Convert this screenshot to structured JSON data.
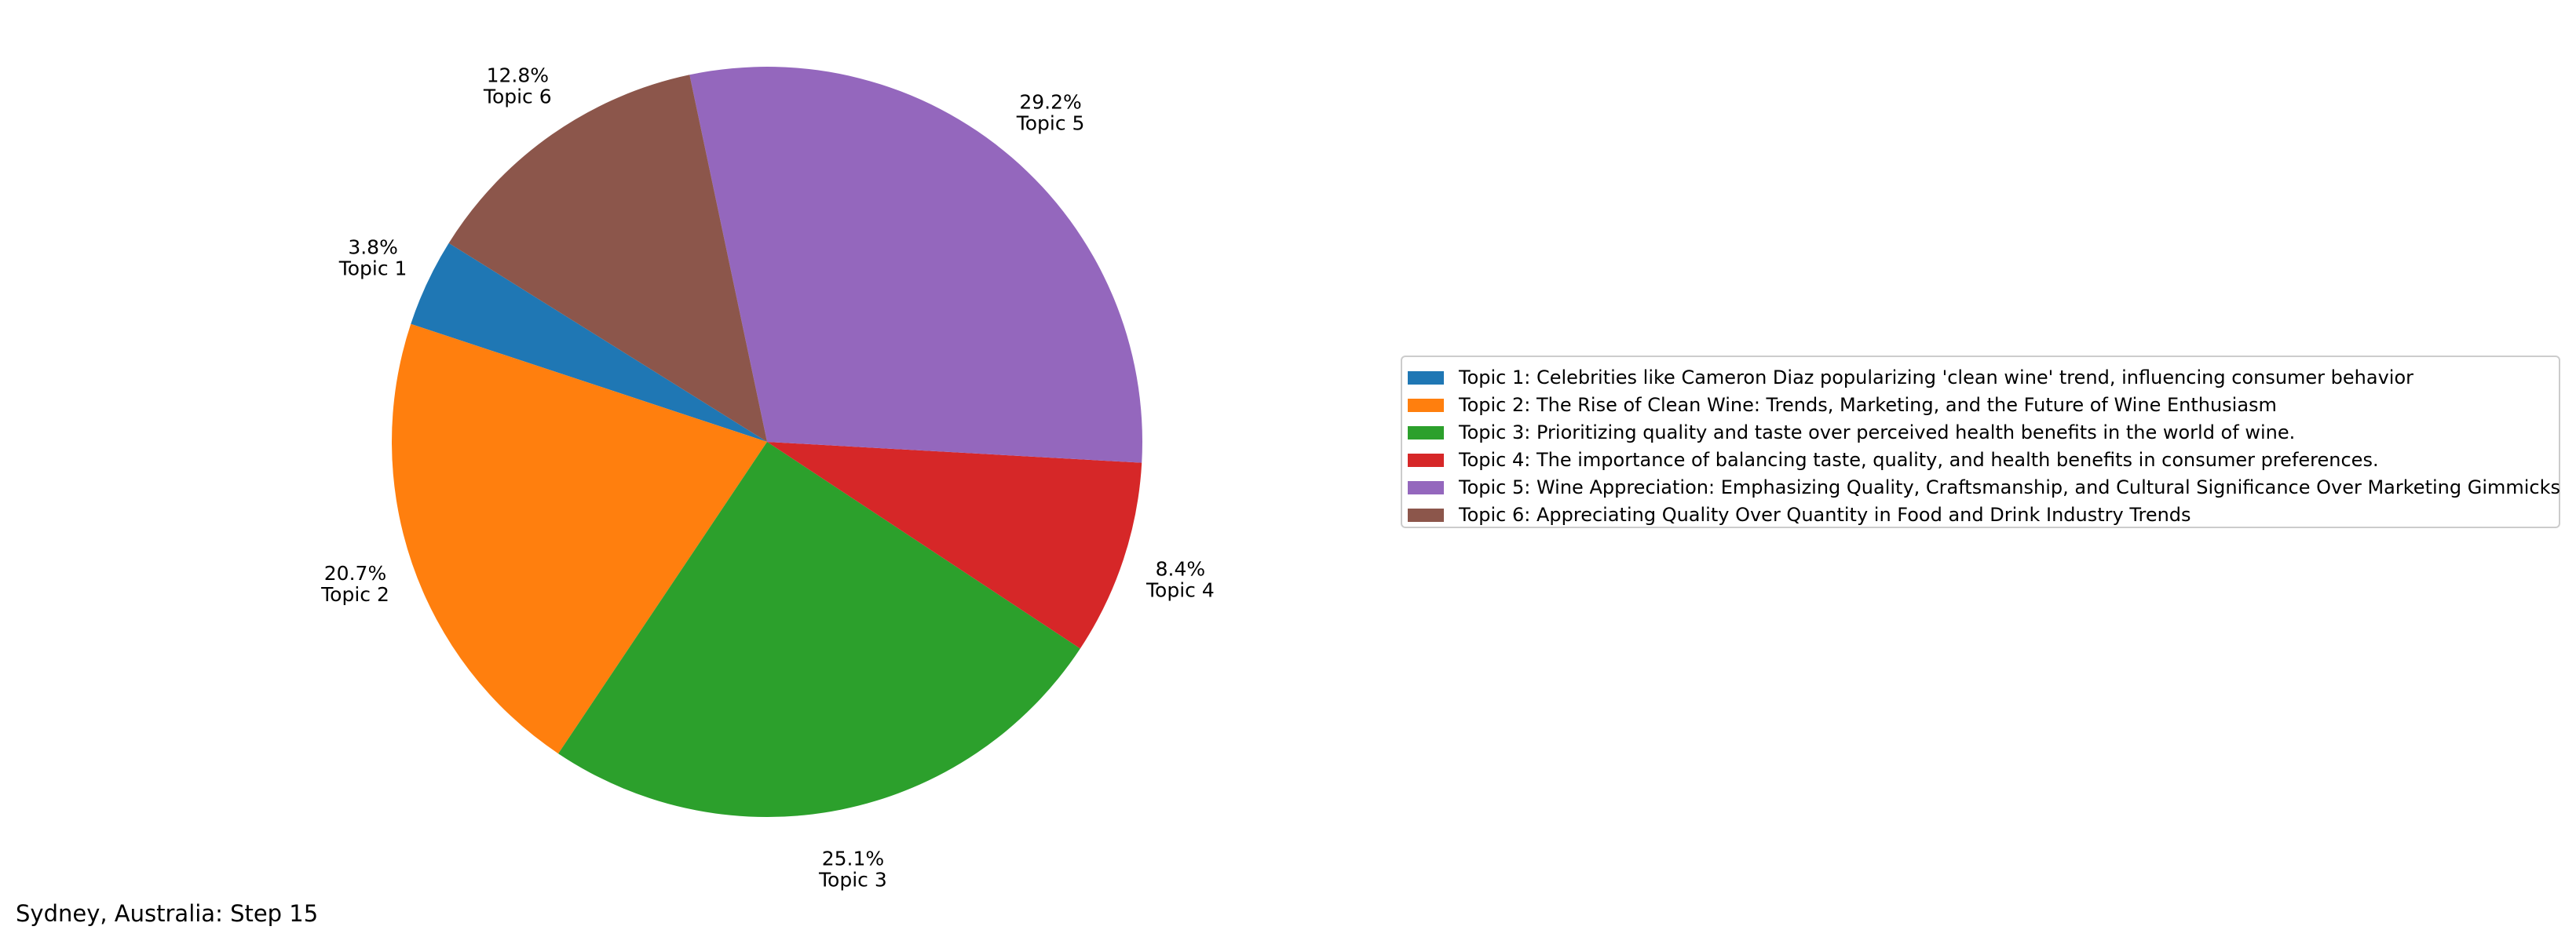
{
  "chart_data": {
    "type": "pie",
    "start_angle_deg": 148,
    "direction": "counterclockwise",
    "slices": [
      {
        "label": "Topic 1",
        "value": 3.8,
        "value_label": "3.8%",
        "color": "#1f77b4"
      },
      {
        "label": "Topic 2",
        "value": 20.7,
        "value_label": "20.7%",
        "color": "#ff7f0e"
      },
      {
        "label": "Topic 3",
        "value": 25.1,
        "value_label": "25.1%",
        "color": "#2ca02c"
      },
      {
        "label": "Topic 4",
        "value": 8.4,
        "value_label": "8.4%",
        "color": "#d62728"
      },
      {
        "label": "Topic 5",
        "value": 29.2,
        "value_label": "29.2%",
        "color": "#9467bd"
      },
      {
        "label": "Topic 6",
        "value": 12.8,
        "value_label": "12.8%",
        "color": "#8c564b"
      }
    ],
    "legend": {
      "placement": "right",
      "entries": [
        "Topic 1: Celebrities like Cameron Diaz popularizing 'clean wine' trend, influencing consumer behavior",
        "Topic 2: The Rise of Clean Wine: Trends, Marketing, and the Future of Wine Enthusiasm",
        "Topic 3: Prioritizing quality and taste over perceived health benefits in the world of wine.",
        "Topic 4: The importance of balancing taste, quality, and health benefits in consumer preferences.",
        "Topic 5: Wine Appreciation: Emphasizing Quality, Craftsmanship, and Cultural Significance Over Marketing Gimmicks",
        "Topic 6: Appreciating Quality Over Quantity in Food and Drink Industry Trends"
      ]
    }
  },
  "caption": "Sydney, Australia: Step 15"
}
